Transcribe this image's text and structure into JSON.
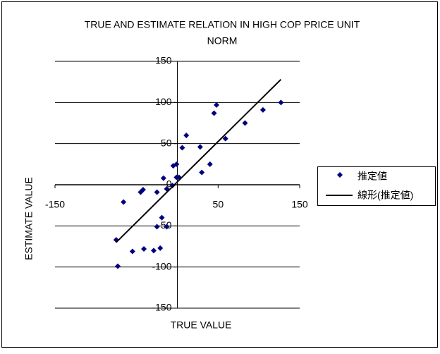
{
  "chart_data": {
    "type": "scatter",
    "title": [
      "TRUE AND ESTIMATE RELATION IN HIGH COP PRICE UNIT",
      "NORM"
    ],
    "x_label": "TRUE VALUE",
    "y_label": "ESTIMATE VALUE",
    "xlim": [
      -150,
      150
    ],
    "ylim": [
      -150,
      150
    ],
    "xticks": [
      -150,
      50,
      150
    ],
    "yticks": [
      -150,
      -100,
      -50,
      0,
      50,
      100,
      150
    ],
    "grid": true,
    "legend": "right",
    "series": [
      {
        "name": "推定値",
        "color": "#000080",
        "marker": "diamond",
        "x": [
          -75,
          -73,
          -66,
          -55,
          -45,
          -42,
          -41,
          -29,
          -25,
          -25,
          -21,
          -19,
          -17,
          -13,
          -13,
          -6,
          -5,
          -1,
          -1,
          2,
          6,
          11,
          30,
          28,
          40,
          45,
          48,
          59,
          83,
          105,
          127
        ],
        "values": [
          -67,
          -99,
          -21,
          -81,
          -9,
          -6,
          -78,
          -80,
          -9,
          -51,
          -77,
          -40,
          8,
          -51,
          -5,
          -1,
          23,
          25,
          9,
          9,
          45,
          60,
          15,
          46,
          25,
          87,
          97,
          56,
          75,
          91,
          100
        ]
      },
      {
        "name": "線形(推定値)",
        "color": "#000000",
        "marker": "line",
        "x": [
          -75,
          127
        ],
        "values": [
          -70,
          128
        ]
      }
    ]
  }
}
